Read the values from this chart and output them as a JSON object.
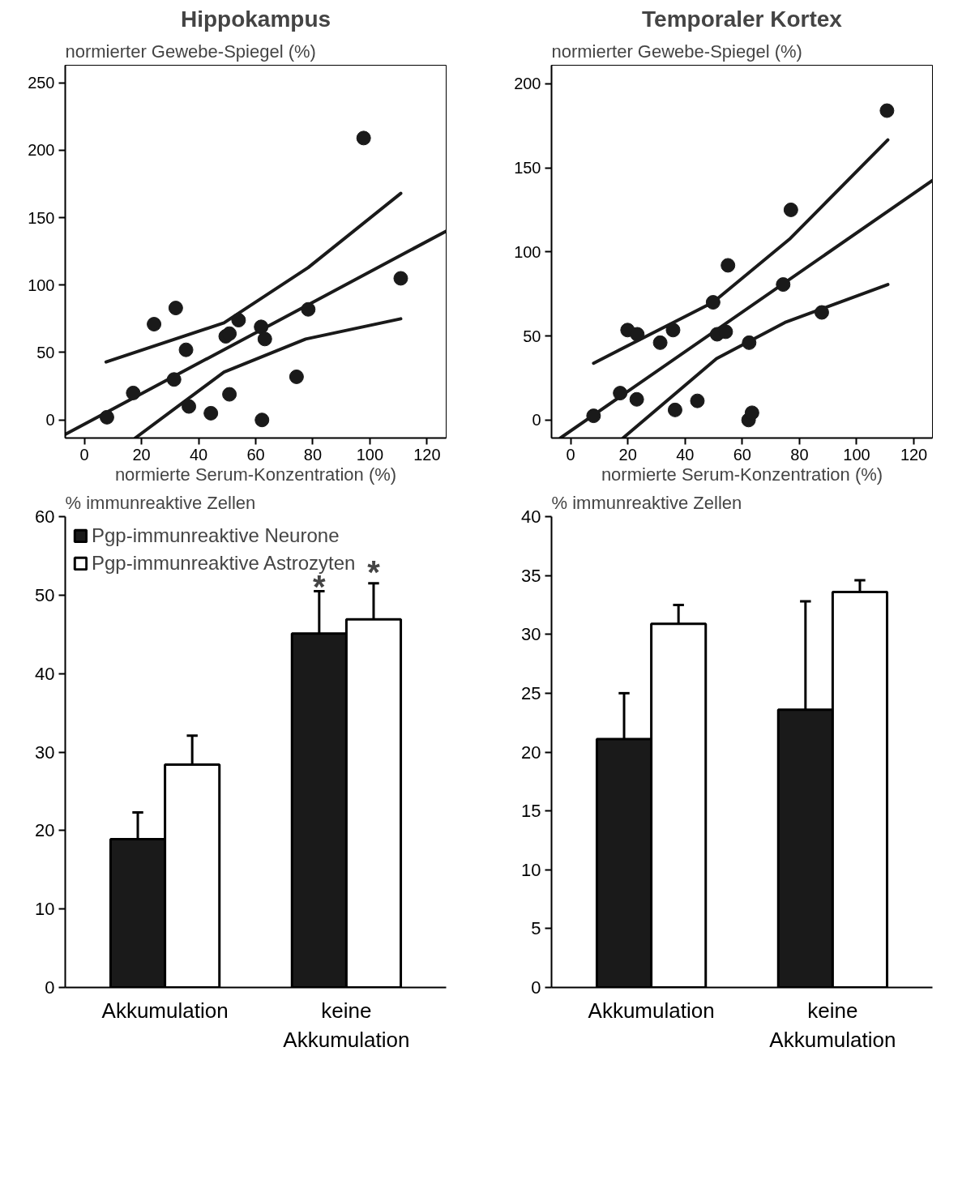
{
  "chart_data": [
    {
      "type": "scatter",
      "title": "Hippokampus",
      "ylabel": "normierter Gewebe-Spiegel (%)",
      "xlabel": "normierte Serum-Konzentration (%)",
      "xlim": [
        -6.7,
        126.7
      ],
      "ylim": [
        -13.4,
        263
      ],
      "xticks": [
        0,
        20,
        40,
        60,
        80,
        100,
        120
      ],
      "yticks": [
        0,
        50,
        100,
        150,
        200,
        250
      ],
      "grid": false,
      "legend": false,
      "series": [
        {
          "type": "scatter",
          "marker": "circle",
          "color": "#1a1a1a",
          "x": [
            7.9,
            17.1,
            24.4,
            31.4,
            32,
            35.6,
            36.6,
            44.3,
            49.5,
            50.8,
            50.8,
            54,
            61.9,
            63.2,
            62.2,
            74.3,
            78.4,
            97.8,
            110.8
          ],
          "values": [
            2,
            20,
            71,
            30,
            83,
            52,
            10,
            5,
            62,
            64,
            19,
            74,
            69,
            60,
            0,
            32,
            82,
            209,
            105
          ]
        },
        {
          "type": "line",
          "color": "#1a1a1a",
          "x": [
            -6.7,
            126.7
          ],
          "values": [
            -10.7,
            140
          ]
        },
        {
          "type": "line",
          "color": "#1a1a1a",
          "x": [
            7.6,
            48.9,
            78.4,
            110.8
          ],
          "values": [
            43,
            72,
            113,
            168
          ]
        },
        {
          "type": "line",
          "color": "#1a1a1a",
          "x": [
            17.8,
            48.9,
            77.5,
            110.8
          ],
          "values": [
            -13.4,
            35.5,
            60,
            75
          ]
        }
      ]
    },
    {
      "type": "scatter",
      "title": "Temporaler Kortex",
      "ylabel": "normierter Gewebe-Spiegel (%)",
      "xlabel": "normierte Serum-Konzentration (%)",
      "xlim": [
        -6.7,
        126.5
      ],
      "ylim": [
        -10.7,
        211
      ],
      "xticks": [
        0,
        20,
        40,
        60,
        80,
        100,
        120
      ],
      "yticks": [
        0,
        50,
        100,
        150,
        200
      ],
      "grid": false,
      "legend": false,
      "series": [
        {
          "type": "scatter",
          "marker": "circle",
          "color": "#1a1a1a",
          "x": [
            8.0,
            17.3,
            19.9,
            23.3,
            23.1,
            31.3,
            35.8,
            36.5,
            44.3,
            49.8,
            51.2,
            54.2,
            55,
            62.4,
            62.2,
            63.4,
            74.3,
            77,
            87.8,
            110.6
          ],
          "values": [
            2.5,
            16,
            53.5,
            51,
            12.3,
            46,
            53.5,
            6,
            11.4,
            70,
            51,
            52.5,
            92,
            46,
            0,
            4.3,
            80.6,
            125,
            64,
            184
          ]
        },
        {
          "type": "line",
          "color": "#1a1a1a",
          "x": [
            -3.6,
            126.5
          ],
          "values": [
            -10.7,
            142.5
          ]
        },
        {
          "type": "line",
          "color": "#1a1a1a",
          "x": [
            8,
            49.8,
            76.8,
            110.9
          ],
          "values": [
            33.8,
            70,
            108,
            166.6
          ]
        },
        {
          "type": "line",
          "color": "#1a1a1a",
          "x": [
            18.3,
            51,
            74.9,
            110.9
          ],
          "values": [
            -10.7,
            36.5,
            58,
            80.6
          ]
        }
      ]
    },
    {
      "type": "bar",
      "ylabel": "% immunreaktive Zellen",
      "categories": [
        "Akkumulation",
        "keine\nAkkumulation"
      ],
      "ylim": [
        0,
        60
      ],
      "yticks": [
        0,
        10,
        20,
        30,
        40,
        50,
        60
      ],
      "grid": false,
      "legend": "top left",
      "series": [
        {
          "name": "Pgp-immunreaktive Neurone",
          "color": "#1a1a1a",
          "values": [
            18.9,
            45.1
          ],
          "errors": [
            3.4,
            5.4
          ]
        },
        {
          "name": "Pgp-immunreaktive Astrozyten",
          "color": "#ffffff",
          "values": [
            28.4,
            46.9
          ],
          "errors": [
            3.7,
            4.6
          ]
        }
      ],
      "annotations": [
        {
          "text": "*",
          "x": "keine\nAkkumulation",
          "y": 45.1
        },
        {
          "text": "*",
          "x": "keine\nAkkumulation",
          "y": 46.9
        }
      ]
    },
    {
      "type": "bar",
      "ylabel": "% immunreaktive Zellen",
      "categories": [
        "Akkumulation",
        "keine\nAkkumulation"
      ],
      "ylim": [
        0,
        40
      ],
      "yticks": [
        0,
        5,
        10,
        15,
        20,
        25,
        30,
        35,
        40
      ],
      "grid": false,
      "legend": false,
      "series": [
        {
          "color": "#1a1a1a",
          "values": [
            21.1,
            23.6
          ],
          "errors": [
            3.9,
            9.2
          ]
        },
        {
          "color": "#ffffff",
          "values": [
            30.9,
            33.6
          ],
          "errors": [
            1.6,
            1.0
          ]
        }
      ]
    }
  ]
}
